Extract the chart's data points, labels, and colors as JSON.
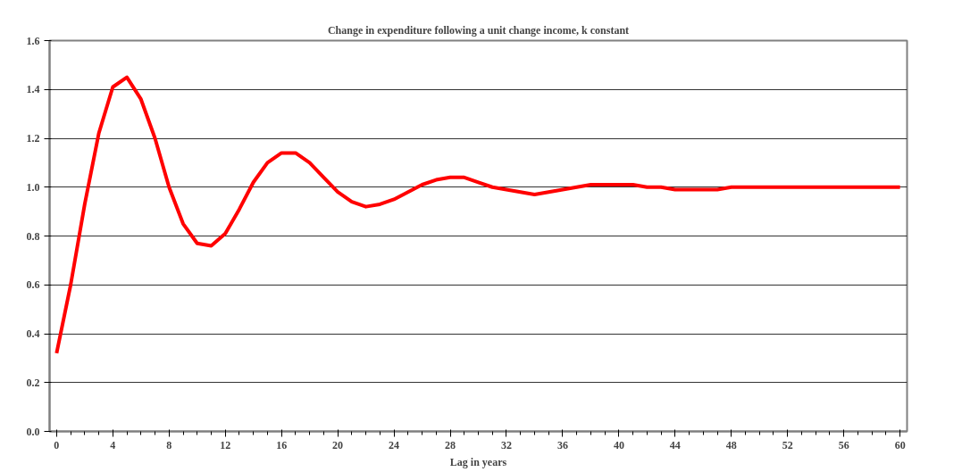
{
  "chart_data": {
    "type": "line",
    "title": "Change in expenditure following a unit change income, k constant",
    "xlabel": "Lag in years",
    "x": [
      0,
      1,
      2,
      3,
      4,
      5,
      6,
      7,
      8,
      9,
      10,
      11,
      12,
      13,
      14,
      15,
      16,
      17,
      18,
      19,
      20,
      21,
      22,
      23,
      24,
      25,
      26,
      27,
      28,
      29,
      30,
      31,
      32,
      33,
      34,
      35,
      36,
      37,
      38,
      39,
      40,
      41,
      42,
      43,
      44,
      45,
      46,
      47,
      48,
      49,
      50,
      51,
      52,
      53,
      54,
      55,
      56,
      57,
      58,
      59,
      60
    ],
    "series": [
      {
        "color": "#ff0000",
        "values": [
          0.32,
          0.6,
          0.93,
          1.22,
          1.41,
          1.45,
          1.36,
          1.2,
          1.0,
          0.85,
          0.77,
          0.76,
          0.81,
          0.91,
          1.02,
          1.1,
          1.14,
          1.14,
          1.1,
          1.04,
          0.98,
          0.94,
          0.92,
          0.93,
          0.95,
          0.98,
          1.01,
          1.03,
          1.04,
          1.04,
          1.02,
          1.0,
          0.99,
          0.98,
          0.97,
          0.98,
          0.99,
          1.0,
          1.01,
          1.01,
          1.01,
          1.01,
          1.0,
          1.0,
          0.99,
          0.99,
          0.99,
          0.99,
          1.0,
          1.0,
          1.0,
          1.0,
          1.0,
          1.0,
          1.0,
          1.0,
          1.0,
          1.0,
          1.0,
          1.0,
          1.0
        ]
      }
    ],
    "xlim": [
      -0.5,
      60.5
    ],
    "ylim": [
      0,
      1.6
    ],
    "xticks": [
      0,
      4,
      8,
      12,
      16,
      20,
      24,
      28,
      32,
      36,
      40,
      44,
      48,
      52,
      56,
      60
    ],
    "yticks": [
      {
        "value": 0,
        "label": "0.0"
      },
      {
        "value": 0.2,
        "label": "0.2"
      },
      {
        "value": 0.4,
        "label": "0.4"
      },
      {
        "value": 0.6,
        "label": "0.6"
      },
      {
        "value": 0.8,
        "label": "0.8"
      },
      {
        "value": 1.0,
        "label": "1.0"
      },
      {
        "value": 1.2,
        "label": "1.2"
      },
      {
        "value": 1.4,
        "label": "1.4"
      },
      {
        "value": 1.6,
        "label": "1.6"
      }
    ],
    "grid": "y",
    "marker": "none",
    "line_style": "solid"
  }
}
